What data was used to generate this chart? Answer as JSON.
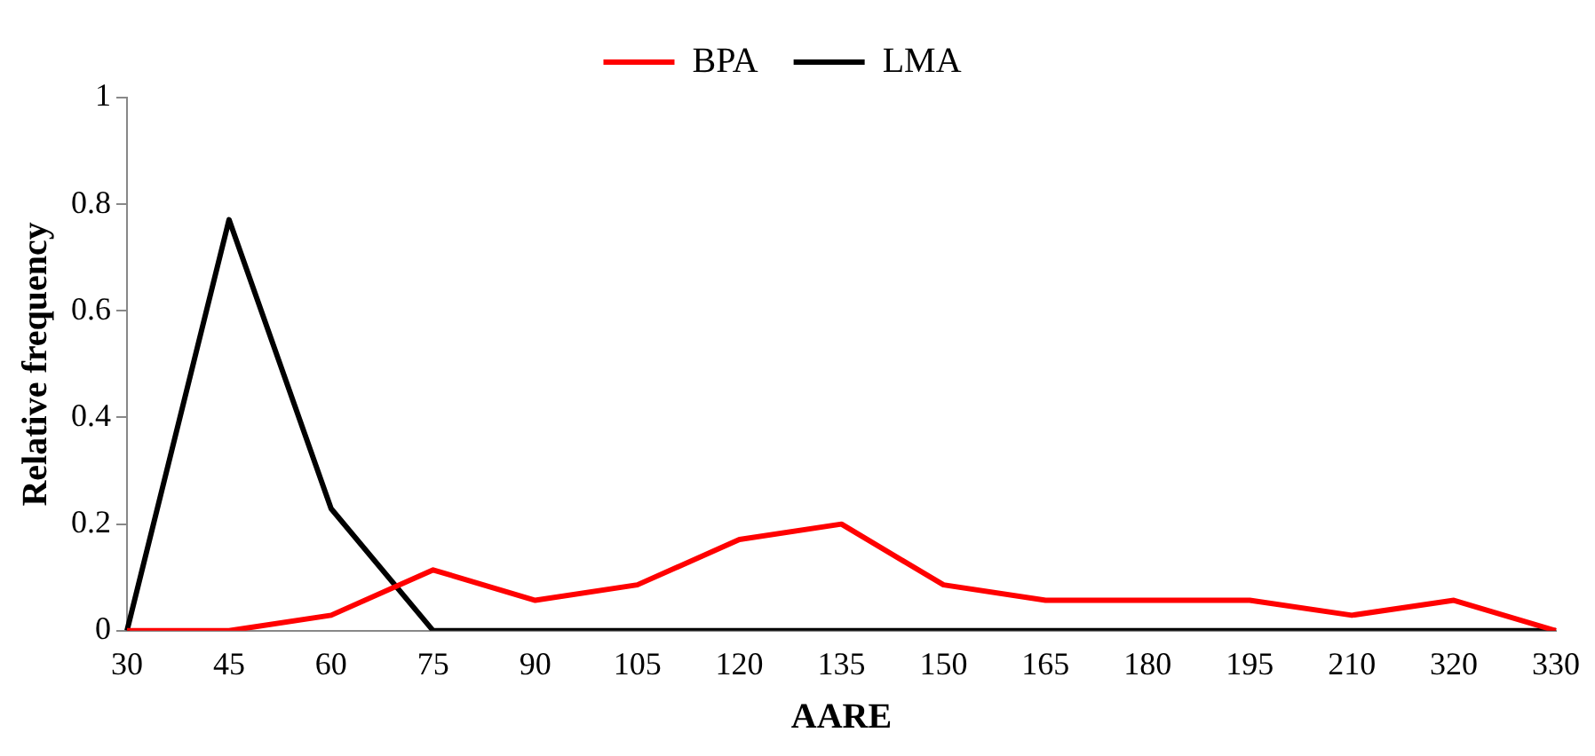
{
  "chart_data": {
    "type": "line",
    "xlabel": "AARE",
    "ylabel": "Relative frequency",
    "categories": [
      "30",
      "45",
      "60",
      "75",
      "90",
      "105",
      "120",
      "135",
      "150",
      "165",
      "180",
      "195",
      "210",
      "320",
      "330"
    ],
    "series": [
      {
        "name": "BPA",
        "color": "#ff0000",
        "values": [
          0,
          0,
          0.029,
          0.114,
          0.057,
          0.086,
          0.171,
          0.2,
          0.086,
          0.057,
          0.057,
          0.057,
          0.029,
          0.057,
          0
        ]
      },
      {
        "name": "LMA",
        "color": "#000000",
        "values": [
          0,
          0.771,
          0.229,
          0,
          0,
          0,
          0,
          0,
          0,
          0,
          0,
          0,
          0,
          0,
          0
        ]
      }
    ],
    "ylim": [
      0,
      1
    ],
    "yticks": [
      0,
      0.2,
      0.4,
      0.6,
      0.8,
      1
    ],
    "grid": false,
    "legend": "top",
    "marker": "none",
    "line_style": "solid"
  }
}
